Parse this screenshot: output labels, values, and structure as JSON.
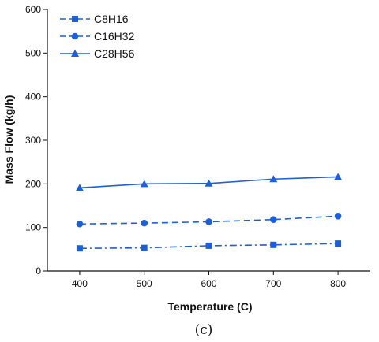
{
  "chart_data": {
    "type": "line",
    "title": "",
    "xlabel": "Temperature (C)",
    "ylabel": "Mass Flow (kg/h)",
    "xlim": [
      350,
      850
    ],
    "ylim": [
      0,
      600
    ],
    "x": [
      400,
      500,
      600,
      700,
      800
    ],
    "x_ticks": [
      "400",
      "500",
      "600",
      "700",
      "800"
    ],
    "y_ticks": [
      "0",
      "100",
      "200",
      "300",
      "400",
      "500",
      "600"
    ],
    "color": "#1f5fd6",
    "grid": false,
    "legend_position": "top-left",
    "series": [
      {
        "name": "C8H16",
        "values": [
          52,
          53,
          58,
          60,
          63
        ],
        "marker": "square",
        "line_style": "dash-dot"
      },
      {
        "name": "C16H32",
        "values": [
          108,
          110,
          113,
          118,
          126
        ],
        "marker": "circle",
        "line_style": "dashed"
      },
      {
        "name": "C28H56",
        "values": [
          191,
          200,
          201,
          211,
          216
        ],
        "marker": "triangle",
        "line_style": "solid"
      }
    ],
    "caption": "(c)"
  }
}
